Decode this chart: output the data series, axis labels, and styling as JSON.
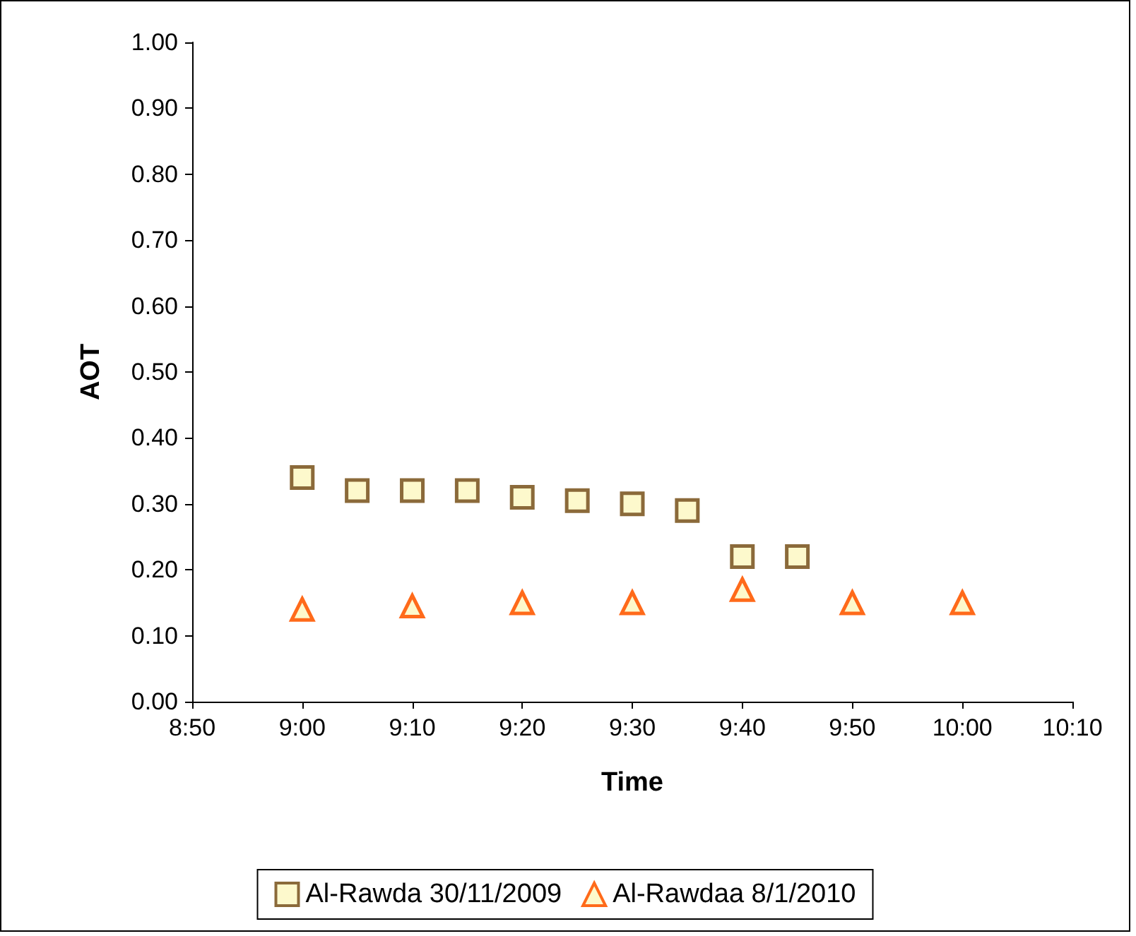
{
  "chart_data": {
    "type": "scatter",
    "xlabel": "Time",
    "ylabel": "AOT",
    "xlim": [
      8.8333,
      10.1667
    ],
    "xticks": [
      {
        "value": 8.8333,
        "label": "8:50"
      },
      {
        "value": 9,
        "label": "9:00"
      },
      {
        "value": 9.1667,
        "label": "9:10"
      },
      {
        "value": 9.3333,
        "label": "9:20"
      },
      {
        "value": 9.5,
        "label": "9:30"
      },
      {
        "value": 9.6667,
        "label": "9:40"
      },
      {
        "value": 9.8333,
        "label": "9:50"
      },
      {
        "value": 10,
        "label": "10:00"
      },
      {
        "value": 10.1667,
        "label": "10:10"
      }
    ],
    "ylim": [
      0,
      1
    ],
    "yticks": [
      {
        "value": 0,
        "label": "0.00"
      },
      {
        "value": 0.1,
        "label": "0.10"
      },
      {
        "value": 0.2,
        "label": "0.20"
      },
      {
        "value": 0.3,
        "label": "0.30"
      },
      {
        "value": 0.4,
        "label": "0.40"
      },
      {
        "value": 0.5,
        "label": "0.50"
      },
      {
        "value": 0.6,
        "label": "0.60"
      },
      {
        "value": 0.7,
        "label": "0.70"
      },
      {
        "value": 0.8,
        "label": "0.80"
      },
      {
        "value": 0.9,
        "label": "0.90"
      },
      {
        "value": 1,
        "label": "1.00"
      }
    ],
    "grid": false,
    "legend": "bottom",
    "series": [
      {
        "name": "Al-Rawda 30/11/2009",
        "color": "#8b6a3a",
        "marker": "square",
        "x": [
          9,
          9.0833,
          9.1667,
          9.25,
          9.3333,
          9.4167,
          9.5,
          9.5833,
          9.6667,
          9.75
        ],
        "values": [
          0.34,
          0.32,
          0.32,
          0.32,
          0.31,
          0.305,
          0.3,
          0.29,
          0.22,
          0.22
        ]
      },
      {
        "name": "Al-Rawdaa 8/1/2010",
        "color": "#ff6a1a",
        "marker": "triangle",
        "x": [
          9,
          9.1667,
          9.3333,
          9.5,
          9.6667,
          9.8333,
          10
        ],
        "values": [
          0.14,
          0.145,
          0.15,
          0.15,
          0.17,
          0.15,
          0.15
        ]
      }
    ]
  }
}
